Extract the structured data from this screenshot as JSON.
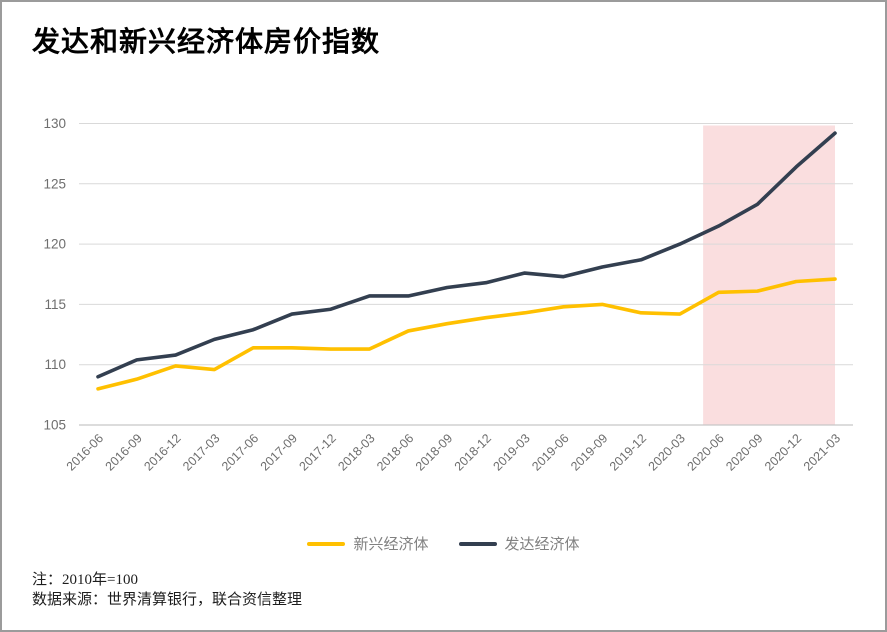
{
  "title": "发达和新兴经济体房价指数",
  "notes": {
    "line1": "注：2010年=100",
    "line2": "数据来源：世界清算银行，联合资信整理"
  },
  "frame": {
    "background": "#FFFFFF",
    "border_color": "#9B9B9B"
  },
  "chart_data": {
    "type": "line",
    "title": "发达和新兴经济体房价指数",
    "categories": [
      "2016-06",
      "2016-09",
      "2016-12",
      "2017-03",
      "2017-06",
      "2017-09",
      "2017-12",
      "2018-03",
      "2018-06",
      "2018-09",
      "2018-12",
      "2019-03",
      "2019-06",
      "2019-09",
      "2019-12",
      "2020-03",
      "2020-06",
      "2020-09",
      "2020-12",
      "2021-03"
    ],
    "series": [
      {
        "name": "新兴经济体",
        "color": "#FFC000",
        "values": [
          108.0,
          108.8,
          109.9,
          109.6,
          111.4,
          111.4,
          111.3,
          111.3,
          112.8,
          113.4,
          113.9,
          114.3,
          114.8,
          115.0,
          114.3,
          114.2,
          116.0,
          116.1,
          116.9,
          117.1
        ]
      },
      {
        "name": "发达经济体",
        "color": "#333F50",
        "values": [
          109.0,
          110.4,
          110.8,
          112.1,
          112.9,
          114.2,
          114.6,
          115.7,
          115.7,
          116.4,
          116.8,
          117.6,
          117.3,
          118.1,
          118.7,
          120.0,
          121.5,
          123.3,
          126.4,
          129.2
        ]
      }
    ],
    "xlabel": "",
    "ylabel": "",
    "ylim": [
      105,
      130
    ],
    "yticks": [
      105,
      110,
      115,
      120,
      125,
      130
    ],
    "grid": true,
    "gridline_color": "#D9D9D9",
    "axis_line_color": "#C6C6C6",
    "tick_label_color": "#6E6E6E",
    "legend_position": "bottom",
    "legend_text_color": "#818181",
    "highlight_band": {
      "from_category": "2020-06",
      "to_category": "2021-03",
      "from_index": 15.6,
      "to_index": 19,
      "color": "#FADEDF"
    }
  }
}
